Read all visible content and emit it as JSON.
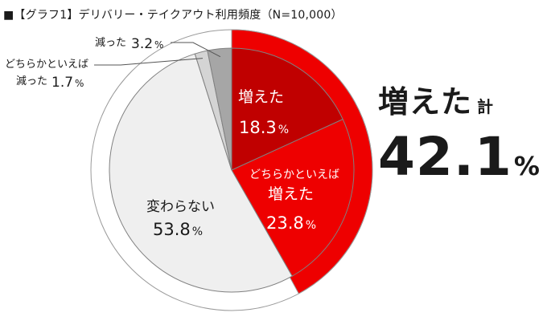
{
  "title": "■【グラフ1】デリバリー・テイクアウト利用頻度（N=10,000）",
  "chart_data": {
    "type": "pie",
    "title": "■【グラフ1】デリバリー・テイクアウト利用頻度（N=10,000）",
    "slices": [
      {
        "label": "増えた",
        "value": 18.3,
        "display": "18.3",
        "color": "#c00000"
      },
      {
        "label": "どちらかといえば増えた",
        "label_line1": "どちらかといえば",
        "label_line2": "増えた",
        "value": 23.8,
        "display": "23.8",
        "color": "#ee0000"
      },
      {
        "label": "変わらない",
        "value": 53.8,
        "display": "53.8",
        "color": "#efefef"
      },
      {
        "label": "どちらかといえば減った",
        "label_line1": "どちらかといえば",
        "label_line2": "減った",
        "value": 1.7,
        "display": "1.7",
        "color": "#d4d4d4"
      },
      {
        "label": "減った",
        "value": 3.2,
        "display": "3.2",
        "color": "#a6a6a6"
      }
    ],
    "unit": "%",
    "outer_ring": {
      "label": "増えた 計",
      "label_main": "増えた",
      "label_suffix": "計",
      "value": 42.1,
      "display": "42.1",
      "color": "#ee0000"
    }
  }
}
